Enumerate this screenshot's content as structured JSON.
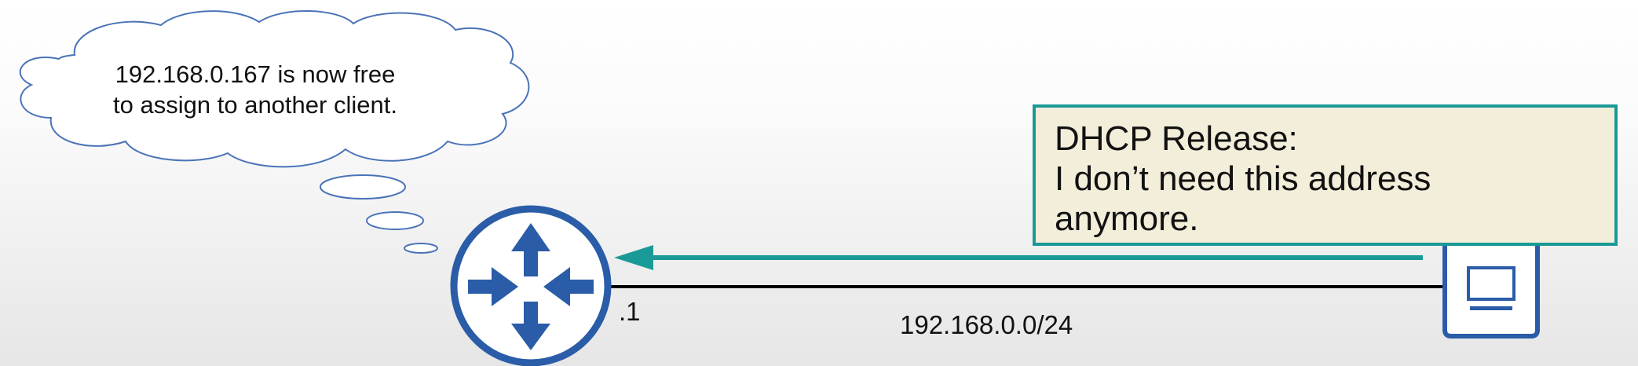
{
  "thought_bubble": {
    "lines": [
      "192.168.0.167 is now free",
      "to assign to another client."
    ]
  },
  "callout": {
    "lines": [
      "DHCP Release:",
      "I don’t need this address",
      "anymore."
    ]
  },
  "router": {
    "interface_ip": ".1",
    "icon": "router-icon"
  },
  "pc": {
    "icon": "pc-icon"
  },
  "network": {
    "subnet": "192.168.0.0/24"
  },
  "colors": {
    "router_blue": "#2a5ca8",
    "arrow_teal": "#1a9a97",
    "callout_bg": "#f3eeda",
    "cloud_stroke": "#4a73b8"
  }
}
